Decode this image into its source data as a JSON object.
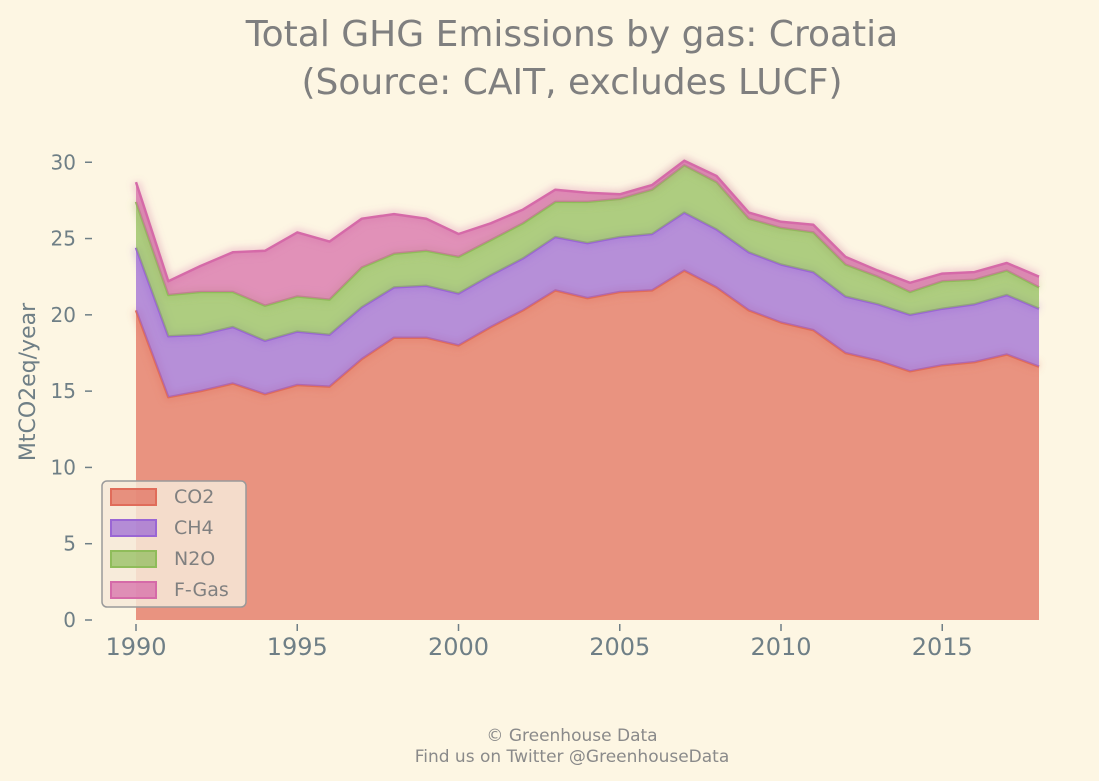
{
  "chart_data": {
    "type": "area",
    "stacked": true,
    "title_lines": [
      "Total GHG Emissions by gas: Croatia",
      "(Source: CAIT, excludes LUCF)"
    ],
    "xlabel": "",
    "ylabel": "MtCO2eq/year",
    "xlim": [
      1990,
      2018
    ],
    "ylim": [
      0,
      31
    ],
    "xticks": [
      1990,
      1995,
      2000,
      2005,
      2010,
      2015
    ],
    "yticks": [
      0,
      5,
      10,
      15,
      20,
      25,
      30
    ],
    "grid": false,
    "legend_position": "lower-left",
    "x": [
      1990,
      1991,
      1992,
      1993,
      1994,
      1995,
      1996,
      1997,
      1998,
      1999,
      2000,
      2001,
      2002,
      2003,
      2004,
      2005,
      2006,
      2007,
      2008,
      2009,
      2010,
      2011,
      2012,
      2013,
      2014,
      2015,
      2016,
      2017,
      2018
    ],
    "series": [
      {
        "name": "CO2",
        "color": "#e06c5a",
        "values": [
          20.3,
          14.6,
          15.0,
          15.5,
          14.8,
          15.4,
          15.3,
          17.1,
          18.5,
          18.5,
          18.0,
          19.2,
          20.3,
          21.6,
          21.1,
          21.5,
          21.6,
          22.9,
          21.8,
          20.3,
          19.5,
          19.0,
          17.5,
          17.0,
          16.3,
          16.7,
          16.9,
          17.4,
          16.6
        ]
      },
      {
        "name": "CH4",
        "color": "#9a66d4",
        "values": [
          4.1,
          4.0,
          3.7,
          3.7,
          3.5,
          3.5,
          3.4,
          3.4,
          3.3,
          3.4,
          3.4,
          3.4,
          3.4,
          3.5,
          3.6,
          3.6,
          3.7,
          3.8,
          3.8,
          3.8,
          3.8,
          3.8,
          3.7,
          3.7,
          3.7,
          3.7,
          3.8,
          3.9,
          3.8
        ]
      },
      {
        "name": "N2O",
        "color": "#8fbc5a",
        "values": [
          3.0,
          2.7,
          2.8,
          2.3,
          2.3,
          2.3,
          2.3,
          2.6,
          2.2,
          2.3,
          2.4,
          2.3,
          2.3,
          2.3,
          2.7,
          2.5,
          2.9,
          3.1,
          3.1,
          2.2,
          2.4,
          2.6,
          2.1,
          1.8,
          1.5,
          1.8,
          1.6,
          1.6,
          1.4
        ]
      },
      {
        "name": "F-Gas",
        "color": "#d56aa8",
        "values": [
          1.3,
          0.9,
          1.7,
          2.6,
          3.6,
          4.2,
          3.8,
          3.2,
          2.6,
          2.1,
          1.5,
          1.1,
          0.9,
          0.8,
          0.6,
          0.3,
          0.3,
          0.3,
          0.4,
          0.4,
          0.4,
          0.5,
          0.5,
          0.4,
          0.6,
          0.5,
          0.5,
          0.5,
          0.7
        ]
      }
    ]
  },
  "footer": {
    "line1": "© Greenhouse Data",
    "line2": "Find us on Twitter @GreenhouseData"
  }
}
